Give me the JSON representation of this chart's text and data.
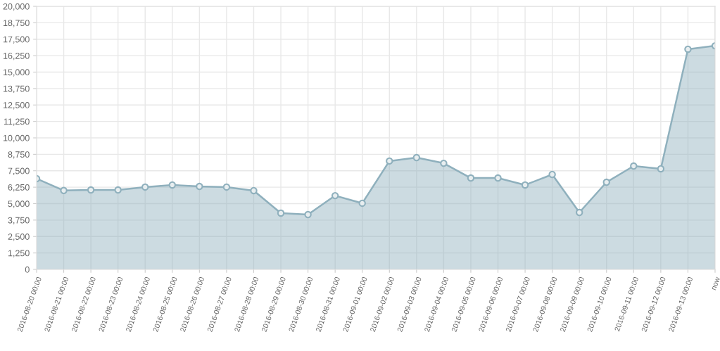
{
  "chart_data": {
    "type": "area",
    "categories": [
      "2016-08-20 00:00",
      "2016-08-21 00:00",
      "2016-08-22 00:00",
      "2016-08-23 00:00",
      "2016-08-24 00:00",
      "2016-08-25 00:00",
      "2016-08-26 00:00",
      "2016-08-27 00:00",
      "2016-08-28 00:00",
      "2016-08-29 00:00",
      "2016-08-30 00:00",
      "2016-08-31 00:00",
      "2016-09-01 00:00",
      "2016-09-02 00:00",
      "2016-09-03 00:00",
      "2016-09-04 00:00",
      "2016-09-05 00:00",
      "2016-09-06 00:00",
      "2016-09-07 00:00",
      "2016-09-08 00:00",
      "2016-09-09 00:00",
      "2016-09-10 00:00",
      "2016-09-11 00:00",
      "2016-09-12 00:00",
      "2016-09-13 00:00",
      "now"
    ],
    "series": [
      {
        "color": "#8fb0bd",
        "values": [
          6900,
          6000,
          6040,
          6040,
          6260,
          6420,
          6310,
          6260,
          5990,
          4280,
          4170,
          5610,
          5030,
          8240,
          8500,
          8070,
          6950,
          6950,
          6420,
          7220,
          4330,
          6630,
          7860,
          7650,
          16740,
          17000
        ]
      }
    ],
    "ylim": [
      0,
      20000
    ],
    "yticks": [
      {
        "value": 0,
        "label": "0"
      },
      {
        "value": 1250,
        "label": "1,250"
      },
      {
        "value": 2500,
        "label": "2,500"
      },
      {
        "value": 3750,
        "label": "3,750"
      },
      {
        "value": 5000,
        "label": "5,000"
      },
      {
        "value": 6250,
        "label": "6,250"
      },
      {
        "value": 7500,
        "label": "7,500"
      },
      {
        "value": 8750,
        "label": "8,750"
      },
      {
        "value": 10000,
        "label": "10,000"
      },
      {
        "value": 11250,
        "label": "11,250"
      },
      {
        "value": 12500,
        "label": "12,500"
      },
      {
        "value": 13750,
        "label": "13,750"
      },
      {
        "value": 15000,
        "label": "15,000"
      },
      {
        "value": 16250,
        "label": "16,250"
      },
      {
        "value": 17500,
        "label": "17,500"
      },
      {
        "value": 18750,
        "label": "18,750"
      },
      {
        "value": 20000,
        "label": "20,000"
      }
    ],
    "grid": true,
    "marker": "circle",
    "line_style": "solid"
  }
}
